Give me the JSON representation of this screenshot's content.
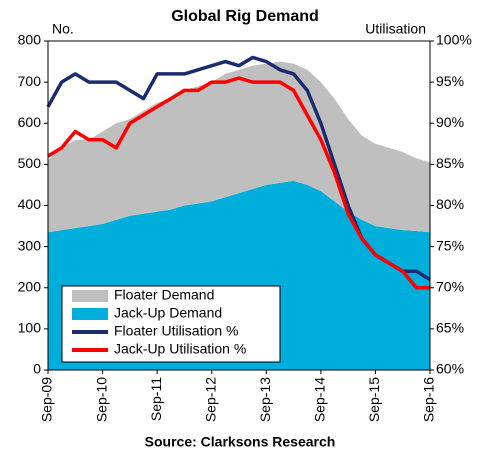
{
  "chart_data": {
    "type": "area-line",
    "title": "Global Rig Demand",
    "ylabel": "No.",
    "y2label": "Utilisation",
    "source": "Source: Clarksons Research",
    "x": [
      "Sep-09",
      "Dec-09",
      "Mar-10",
      "Jun-10",
      "Sep-10",
      "Dec-10",
      "Mar-11",
      "Jun-11",
      "Sep-11",
      "Dec-11",
      "Mar-12",
      "Jun-12",
      "Sep-12",
      "Dec-12",
      "Mar-13",
      "Jun-13",
      "Sep-13",
      "Dec-13",
      "Mar-14",
      "Jun-14",
      "Sep-14",
      "Dec-14",
      "Mar-15",
      "Jun-15",
      "Sep-15",
      "Dec-15",
      "Mar-16",
      "Jun-16",
      "Sep-16"
    ],
    "xtick_every": 4,
    "series": [
      {
        "name": "Floater Demand",
        "kind": "area",
        "color": "#bfbfbf",
        "values": [
          175,
          200,
          215,
          210,
          225,
          235,
          235,
          250,
          265,
          270,
          280,
          285,
          290,
          300,
          300,
          300,
          295,
          295,
          285,
          280,
          265,
          250,
          225,
          205,
          200,
          195,
          190,
          177,
          170
        ]
      },
      {
        "name": "Jack-Up Demand",
        "kind": "area",
        "color": "#00aedb",
        "values": [
          335,
          340,
          345,
          350,
          355,
          365,
          375,
          380,
          385,
          390,
          400,
          405,
          410,
          420,
          430,
          440,
          450,
          455,
          460,
          450,
          435,
          410,
          385,
          365,
          350,
          345,
          340,
          338,
          335
        ]
      },
      {
        "name": "Floater Utilisation %",
        "kind": "line",
        "axis": "y2",
        "color": "#1a2b6e",
        "values": [
          92,
          95,
          96,
          95,
          95,
          95,
          94,
          93,
          96,
          96,
          96,
          96.5,
          97,
          97.5,
          97,
          98,
          97.5,
          96.5,
          96,
          94,
          90,
          85,
          80,
          76,
          74,
          73,
          72,
          72,
          71
        ]
      },
      {
        "name": "Jack-Up Utilisation %",
        "kind": "line",
        "axis": "y2",
        "color": "#ff0000",
        "values": [
          86,
          87,
          89,
          88,
          88,
          87,
          90,
          91,
          92,
          93,
          94,
          94,
          95,
          95,
          95.5,
          95,
          95,
          95,
          94,
          91,
          88,
          84,
          79,
          76,
          74,
          73,
          72,
          70,
          70
        ]
      }
    ],
    "ylim": [
      0,
      800
    ],
    "yticks": [
      0,
      100,
      200,
      300,
      400,
      500,
      600,
      700,
      800
    ],
    "y2lim": [
      60,
      100
    ],
    "y2ticks": [
      {
        "value": 60,
        "label": "60%"
      },
      {
        "value": 65,
        "label": "65%"
      },
      {
        "value": 70,
        "label": "70%"
      },
      {
        "value": 75,
        "label": "75%"
      },
      {
        "value": 80,
        "label": "80%"
      },
      {
        "value": 85,
        "label": "85%"
      },
      {
        "value": 90,
        "label": "90%"
      },
      {
        "value": 95,
        "label": "95%"
      },
      {
        "value": 100,
        "label": "100%"
      }
    ],
    "legend": "lower-left"
  }
}
